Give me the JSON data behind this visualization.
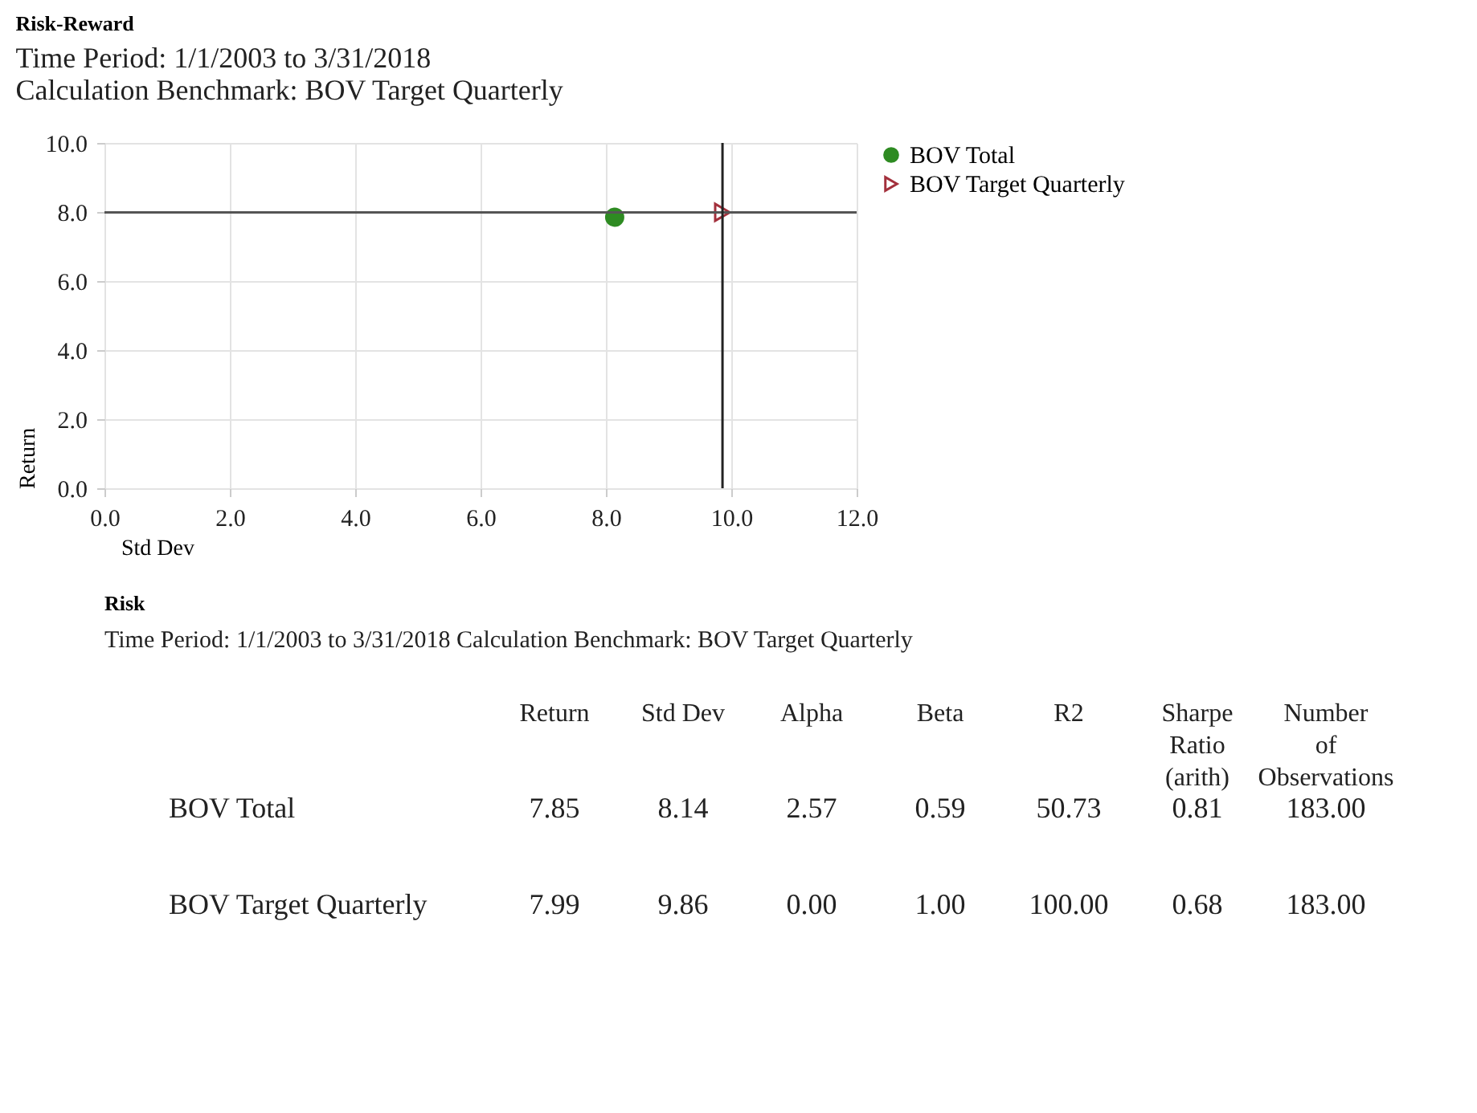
{
  "chart_data": [
    {
      "type": "scatter",
      "title": "Risk-Reward",
      "subtitle": "Time Period: 1/1/2003 to 3/31/2018",
      "annotations": [
        "Calculation Benchmark: BOV Target Quarterly"
      ],
      "xlabel": "Std Dev",
      "ylabel": "Return",
      "xlim": [
        0,
        12
      ],
      "ylim": [
        0,
        10
      ],
      "xticks": [
        {
          "value": 0,
          "label": "0.0"
        },
        {
          "value": 2,
          "label": "2.0"
        },
        {
          "value": 4,
          "label": "4.0"
        },
        {
          "value": 6,
          "label": "6.0"
        },
        {
          "value": 8,
          "label": "8.0"
        },
        {
          "value": 10,
          "label": "10.0"
        },
        {
          "value": 12,
          "label": "12.0"
        }
      ],
      "yticks": [
        {
          "value": 0,
          "label": "0.0"
        },
        {
          "value": 2,
          "label": "2.0"
        },
        {
          "value": 4,
          "label": "4.0"
        },
        {
          "value": 6,
          "label": "6.0"
        },
        {
          "value": 8,
          "label": "8.0"
        },
        {
          "value": 10,
          "label": "10.0"
        }
      ],
      "series": [
        {
          "name": "BOV Total",
          "color": "#2e8b22",
          "marker": "circle",
          "x": [
            8.14
          ],
          "values": [
            7.85
          ]
        },
        {
          "name": "BOV Target Quarterly",
          "color": "#a3303c",
          "marker": "triangle",
          "x": [
            9.86
          ],
          "values": [
            7.99
          ]
        }
      ],
      "ref_lines": [
        {
          "axis": "y",
          "value": 7.99,
          "color": "#555555"
        },
        {
          "axis": "x",
          "value": 9.86,
          "color": "#222222"
        }
      ],
      "grid": true,
      "legend": "right"
    },
    {
      "type": "other",
      "title": "Risk",
      "subtitle": "Time Period: 1/1/2003 to 3/31/2018    Calculation Benchmark: BOV Target Quarterly",
      "categories": [
        "Return",
        "Std Dev",
        "Alpha",
        "Beta",
        "R2",
        "Sharpe Ratio (arith)",
        "Number of Observations"
      ],
      "series": [
        {
          "name": "BOV Total",
          "values": [
            7.85,
            8.14,
            2.57,
            0.59,
            50.73,
            0.81,
            183
          ],
          "value_labels": [
            "7.85",
            "8.14",
            "2.57",
            "0.59",
            "50.73",
            "0.81",
            "183.00"
          ]
        },
        {
          "name": "BOV Target Quarterly",
          "values": [
            7.99,
            9.86,
            0,
            1,
            100,
            0.68,
            183
          ],
          "value_labels": [
            "7.99",
            "9.86",
            "0.00",
            "1.00",
            "100.00",
            "0.68",
            "183.00"
          ]
        }
      ]
    }
  ]
}
